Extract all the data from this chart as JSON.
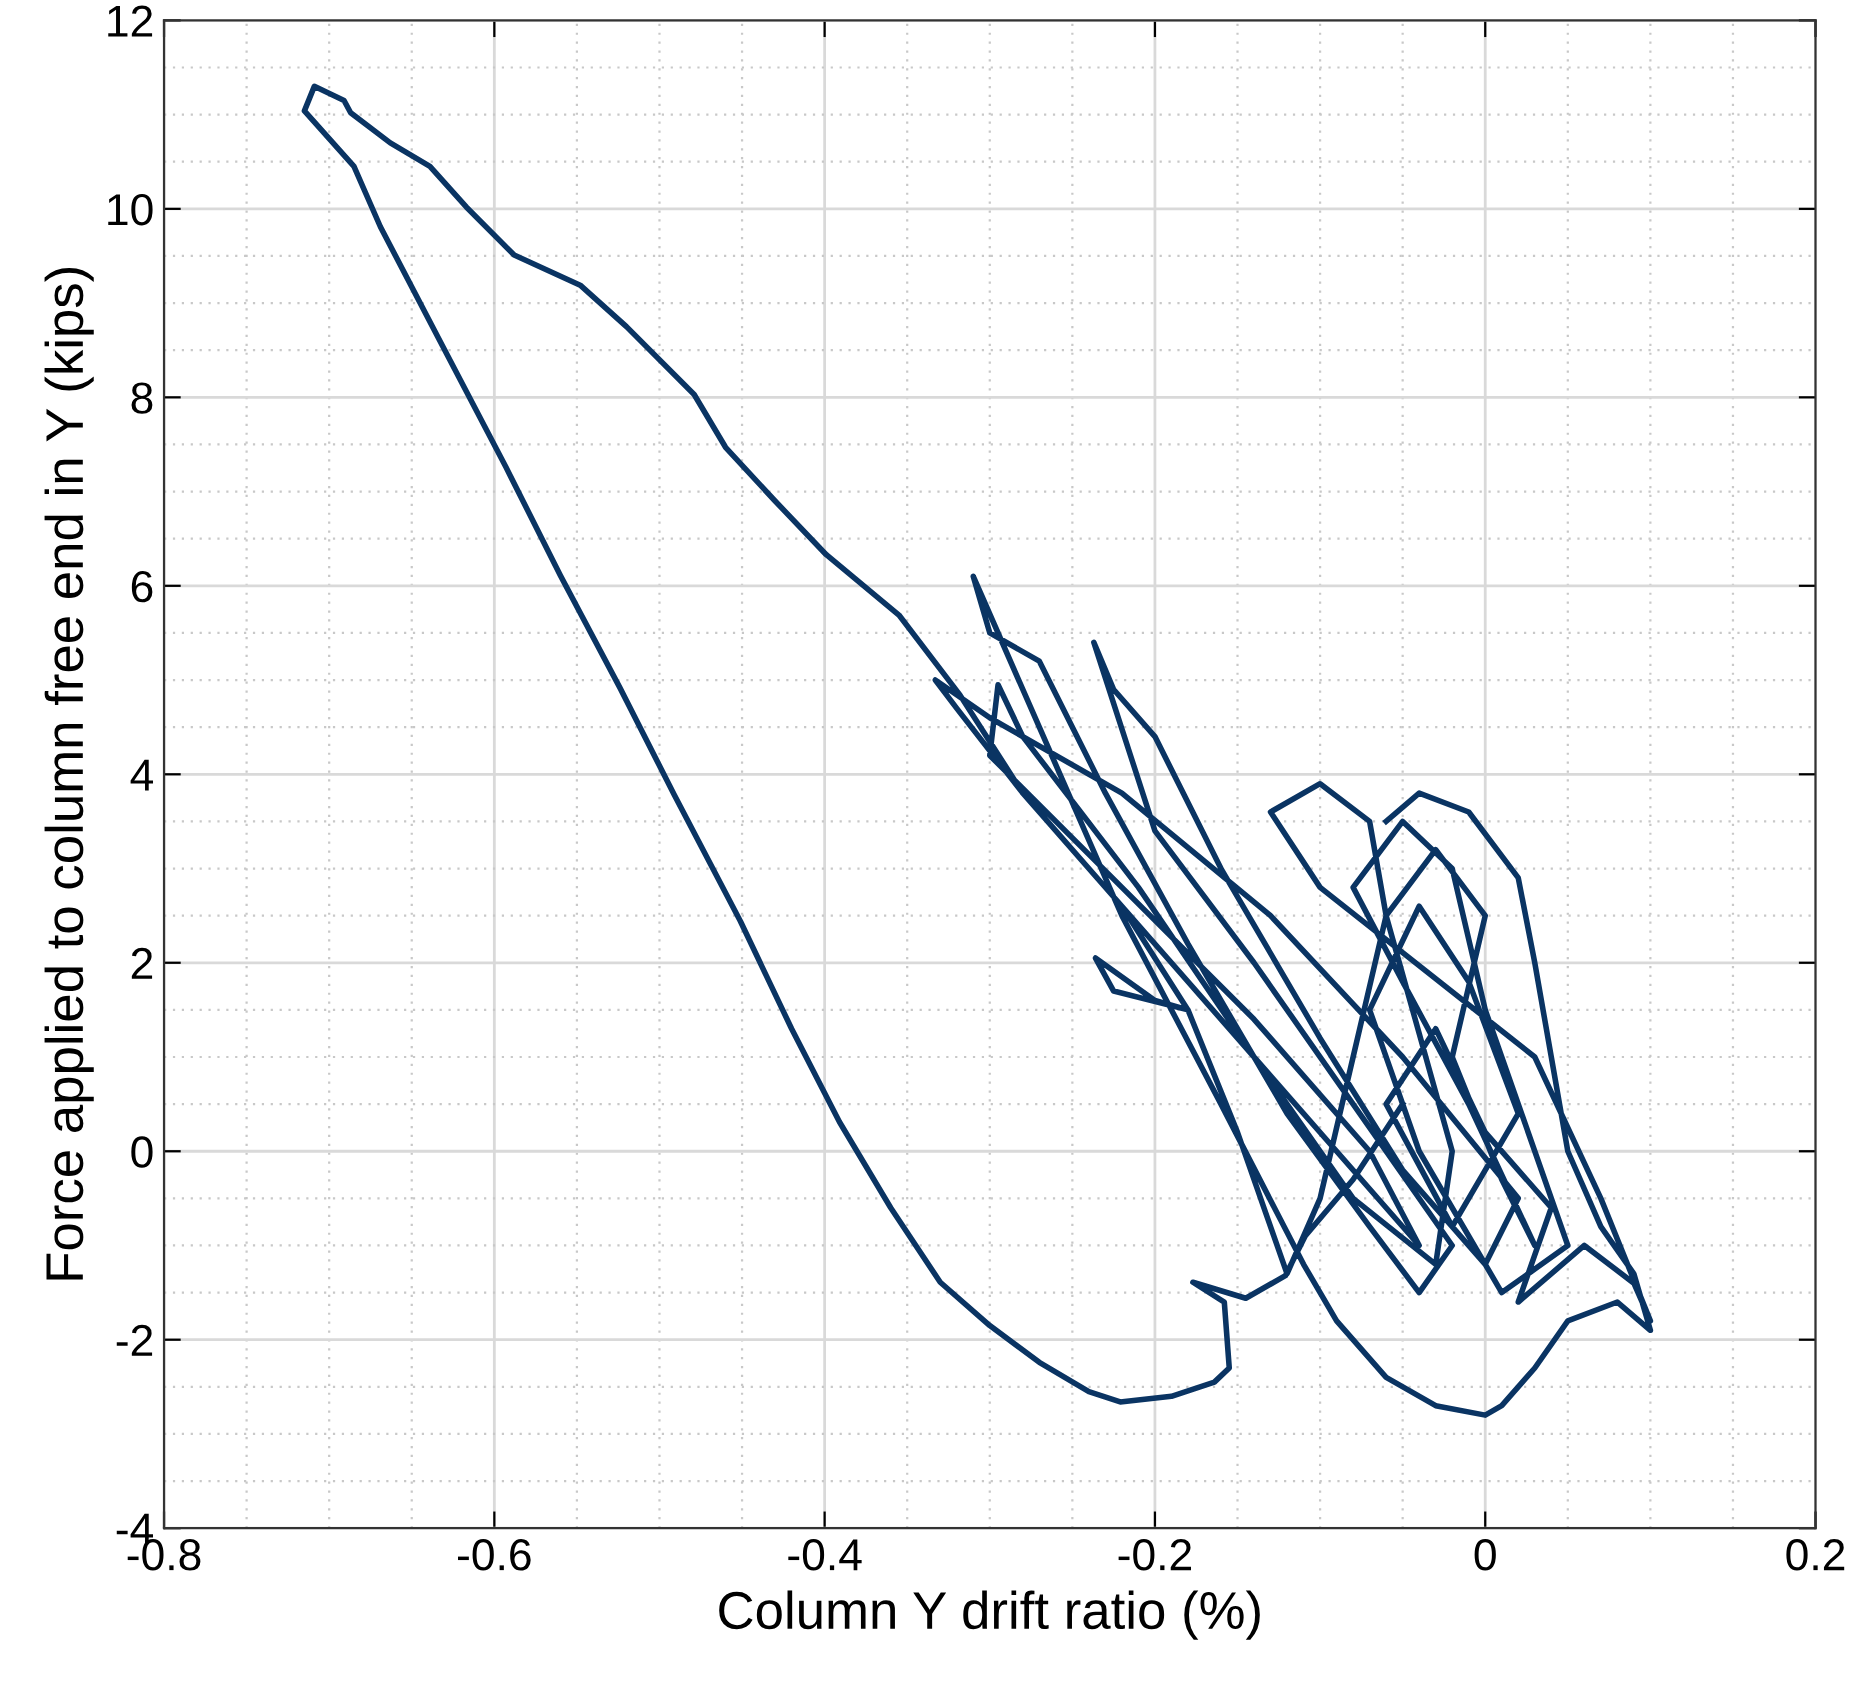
{
  "chart_data": {
    "type": "line",
    "xlabel": "Column Y drift ratio (%)",
    "ylabel": "Force applied to column free end in Y (kips)",
    "xlim": [
      -0.8,
      0.2
    ],
    "xticks": [
      -0.8,
      -0.6,
      -0.4,
      -0.2,
      0,
      0.2
    ],
    "ylim": [
      -4,
      12
    ],
    "yticks": [
      -4,
      -2,
      0,
      2,
      4,
      6,
      8,
      10,
      12
    ],
    "grid": true,
    "marker": "none",
    "line_style": "solid",
    "series": [
      {
        "color": "#0a3463",
        "x": [
          -0.06,
          -0.04,
          -0.01,
          0.02,
          0.03,
          0.04,
          0.05,
          0.07,
          0.09,
          0.1,
          0.08,
          0.05,
          0.03,
          0.01,
          0.0,
          -0.03,
          -0.06,
          -0.09,
          -0.11,
          -0.16,
          -0.22,
          -0.27,
          -0.31,
          -0.3,
          -0.27,
          -0.23,
          -0.18,
          -0.12,
          -0.07,
          -0.04,
          -0.02,
          -0.08,
          -0.14,
          -0.2,
          -0.237,
          -0.225,
          -0.2,
          -0.16,
          -0.1,
          -0.05,
          0.0,
          0.02,
          -0.05,
          -0.13,
          -0.22,
          -0.3,
          -0.333,
          -0.32,
          -0.28,
          -0.22,
          -0.15,
          -0.09,
          -0.04,
          -0.07,
          -0.14,
          -0.22,
          -0.3,
          -0.295,
          -0.28,
          -0.21,
          -0.14,
          -0.08,
          -0.03,
          -0.02,
          -0.06,
          -0.03,
          0.0,
          -0.02,
          0.01,
          0.03,
          -0.01,
          -0.05,
          -0.08,
          -0.05,
          -0.02,
          0.0,
          0.03,
          0.05,
          0.01,
          -0.04,
          -0.07,
          -0.04,
          -0.01,
          0.02,
          -0.02,
          -0.06,
          -0.03,
          0.0,
          0.04,
          0.02,
          0.06,
          0.09,
          0.1,
          0.07,
          0.03,
          -0.1,
          -0.13,
          -0.1,
          -0.07,
          -0.06,
          -0.08,
          -0.1,
          -0.12,
          -0.15,
          -0.18,
          -0.2,
          -0.236,
          -0.225,
          -0.18,
          -0.22,
          -0.28,
          -0.318,
          -0.355,
          -0.399,
          -0.43,
          -0.46,
          -0.479,
          -0.52,
          -0.548,
          -0.588,
          -0.617,
          -0.639,
          -0.663,
          -0.687,
          -0.691,
          -0.709,
          -0.715,
          -0.685,
          -0.669,
          -0.633,
          -0.593,
          -0.56,
          -0.524,
          -0.491,
          -0.451,
          -0.42,
          -0.391,
          -0.36,
          -0.33,
          -0.3,
          -0.27,
          -0.24,
          -0.221,
          -0.19,
          -0.164,
          -0.155,
          -0.158,
          -0.177,
          -0.145,
          -0.121,
          -0.109,
          -0.08,
          -0.05
        ],
        "values": [
          3.5,
          3.8,
          3.6,
          2.9,
          2.0,
          1.0,
          0.0,
          -0.8,
          -1.3,
          -1.9,
          -1.6,
          -1.8,
          -2.3,
          -2.7,
          -2.8,
          -2.7,
          -2.4,
          -1.8,
          -1.2,
          0.5,
          2.5,
          4.5,
          6.1,
          5.5,
          5.2,
          3.8,
          2.2,
          0.4,
          -0.8,
          -1.5,
          -1.0,
          0.5,
          2.0,
          3.4,
          5.4,
          4.9,
          4.4,
          3.0,
          1.2,
          -0.2,
          -1.2,
          -0.5,
          1.0,
          2.5,
          3.8,
          4.6,
          5.0,
          4.7,
          3.8,
          2.6,
          1.2,
          0.0,
          -1.0,
          0.0,
          1.4,
          2.8,
          4.2,
          4.95,
          4.4,
          2.8,
          1.0,
          -0.5,
          -1.2,
          0.0,
          2.5,
          3.2,
          2.5,
          1.0,
          -0.3,
          -1.0,
          0.5,
          1.8,
          2.8,
          3.5,
          3.0,
          1.5,
          0.0,
          -1.0,
          -1.5,
          0.0,
          1.5,
          2.6,
          1.8,
          0.4,
          -0.8,
          0.5,
          1.3,
          0.2,
          -0.6,
          -1.6,
          -1.0,
          -1.4,
          -1.8,
          -0.5,
          1.0,
          2.8,
          3.6,
          3.9,
          3.5,
          2.5,
          1.0,
          -0.5,
          -1.3,
          0.2,
          1.5,
          1.6,
          2.05,
          1.7,
          1.5,
          2.6,
          3.8,
          4.84,
          5.69,
          6.33,
          6.9,
          7.47,
          8.03,
          8.75,
          9.19,
          9.51,
          10.02,
          10.45,
          10.7,
          11.02,
          11.15,
          11.3,
          11.04,
          10.45,
          9.81,
          8.6,
          7.26,
          6.11,
          4.92,
          3.78,
          2.44,
          1.3,
          0.31,
          -0.6,
          -1.39,
          -1.85,
          -2.24,
          -2.55,
          -2.66,
          -2.6,
          -2.45,
          -2.3,
          -1.6,
          -1.39,
          -1.56,
          -1.32,
          -0.9,
          -0.3,
          0.5
        ]
      }
    ]
  }
}
